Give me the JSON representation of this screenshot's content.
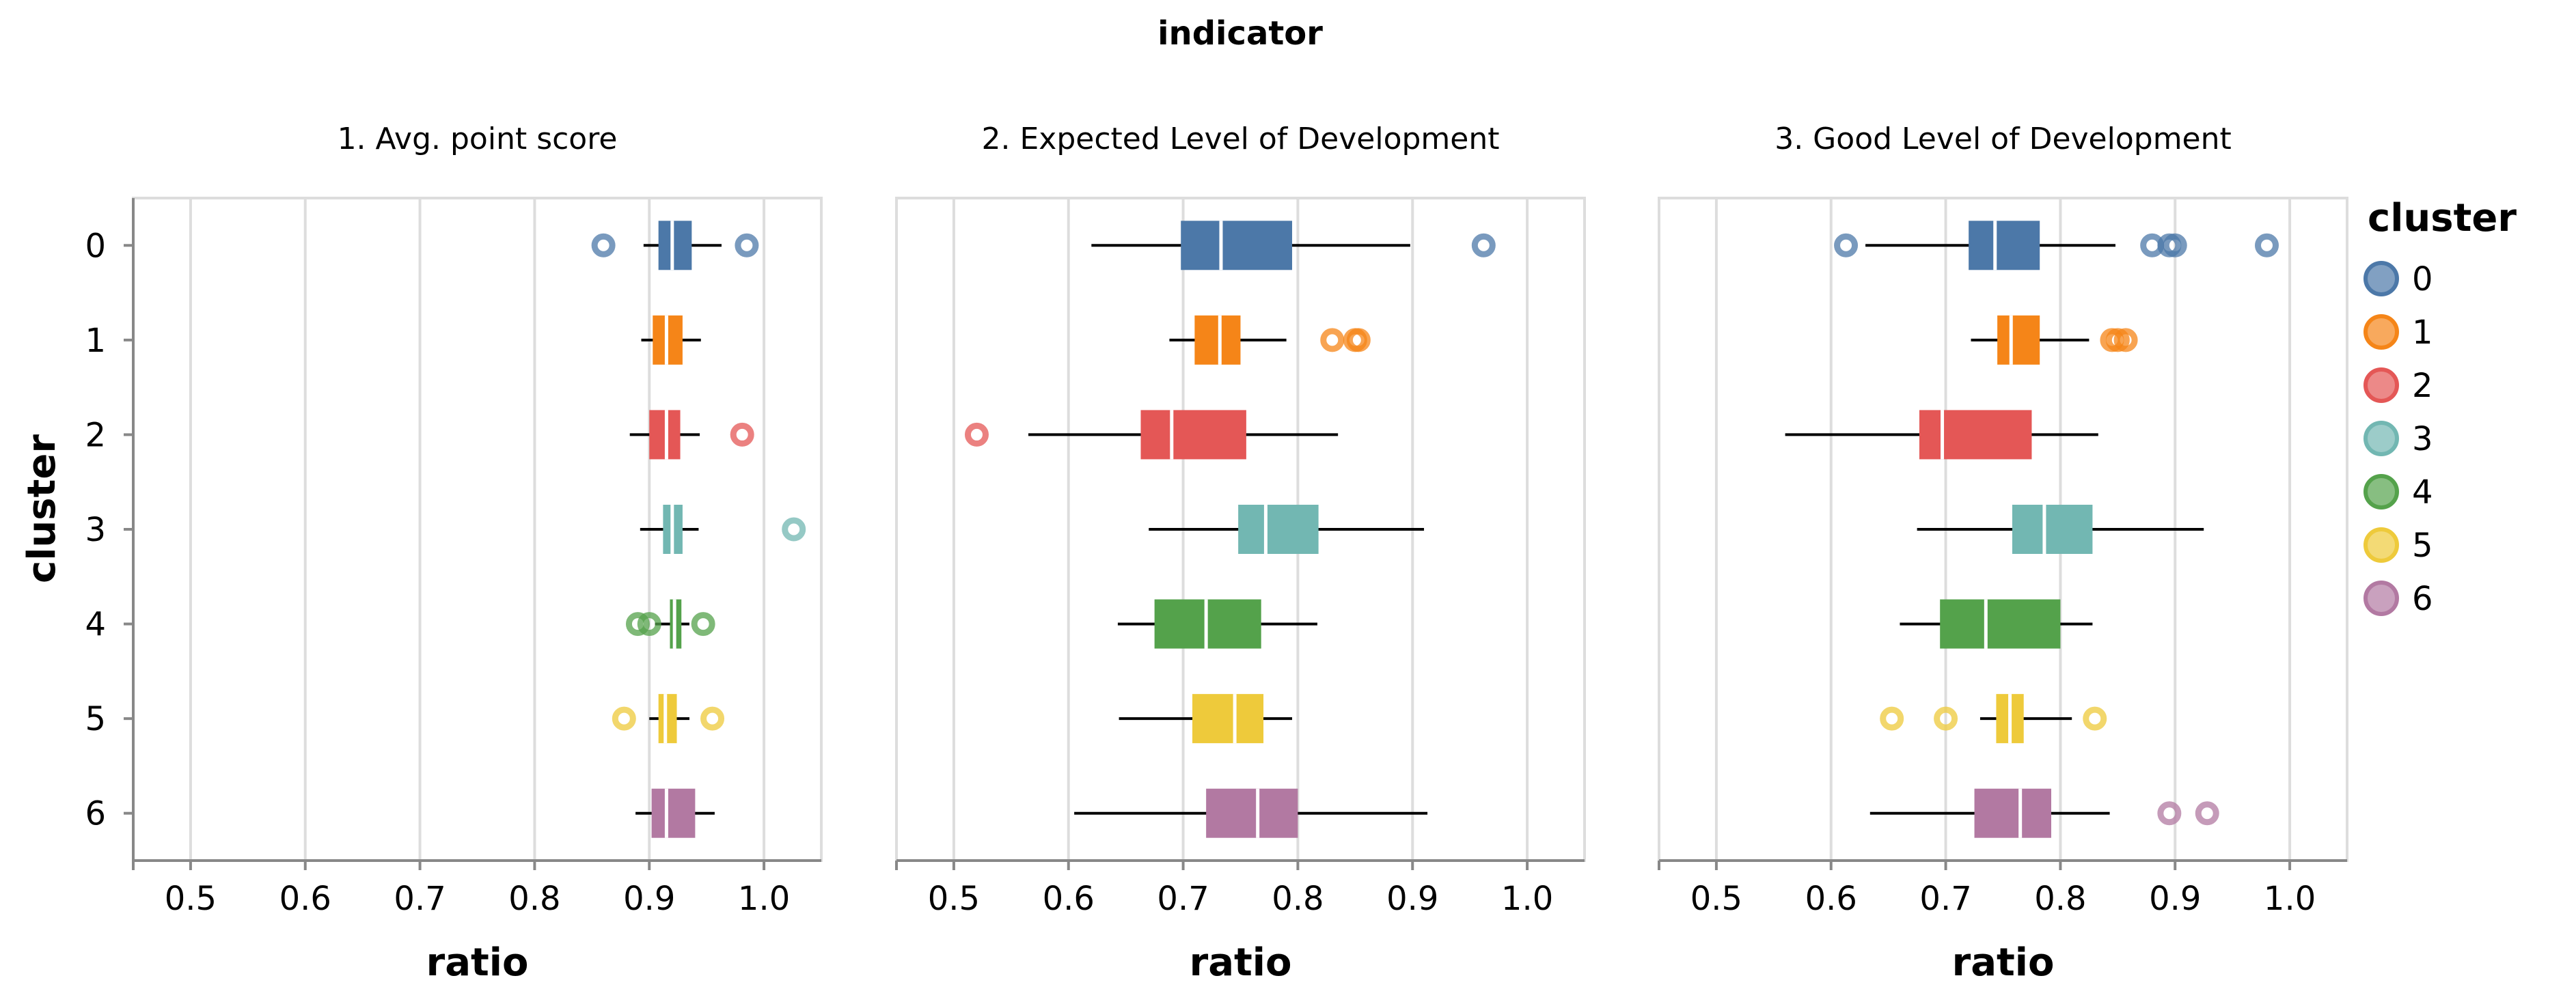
{
  "chart_data": {
    "type": "boxplot",
    "title": "indicator",
    "xlabel": "ratio",
    "ylabel": "cluster",
    "xlim": [
      0.45,
      1.05
    ],
    "x_ticks": [
      "0.5",
      "0.6",
      "0.7",
      "0.8",
      "0.9",
      "1.0"
    ],
    "x_tick_values": [
      0.5,
      0.6,
      0.7,
      0.8,
      0.9,
      1.0
    ],
    "categories": [
      "0",
      "1",
      "2",
      "3",
      "4",
      "5",
      "6"
    ],
    "grid": true,
    "legend": {
      "title": "cluster",
      "placement": "right",
      "items": [
        {
          "label": "0",
          "color": "#4c78a8"
        },
        {
          "label": "1",
          "color": "#f58518"
        },
        {
          "label": "2",
          "color": "#e45756"
        },
        {
          "label": "3",
          "color": "#72b7b2"
        },
        {
          "label": "4",
          "color": "#54a24b"
        },
        {
          "label": "5",
          "color": "#eeca3b"
        },
        {
          "label": "6",
          "color": "#b279a2"
        }
      ]
    },
    "facets": [
      {
        "title": "1. Avg. point score",
        "series": [
          {
            "cluster": "0",
            "min": 0.895,
            "q1": 0.908,
            "median": 0.92,
            "q3": 0.937,
            "max": 0.963,
            "outliers": [
              0.86,
              0.985
            ]
          },
          {
            "cluster": "1",
            "min": 0.893,
            "q1": 0.903,
            "median": 0.915,
            "q3": 0.929,
            "max": 0.945,
            "outliers": []
          },
          {
            "cluster": "2",
            "min": 0.883,
            "q1": 0.9,
            "median": 0.915,
            "q3": 0.927,
            "max": 0.944,
            "outliers": [
              0.981
            ]
          },
          {
            "cluster": "3",
            "min": 0.892,
            "q1": 0.912,
            "median": 0.92,
            "q3": 0.929,
            "max": 0.943,
            "outliers": [
              1.026
            ]
          },
          {
            "cluster": "4",
            "min": 0.905,
            "q1": 0.918,
            "median": 0.922,
            "q3": 0.928,
            "max": 0.935,
            "outliers": [
              0.89,
              0.9,
              0.947
            ]
          },
          {
            "cluster": "5",
            "min": 0.9,
            "q1": 0.908,
            "median": 0.914,
            "q3": 0.924,
            "max": 0.935,
            "outliers": [
              0.878,
              0.955
            ]
          },
          {
            "cluster": "6",
            "min": 0.888,
            "q1": 0.902,
            "median": 0.915,
            "q3": 0.94,
            "max": 0.957,
            "outliers": []
          }
        ]
      },
      {
        "title": "2. Expected Level of Development",
        "series": [
          {
            "cluster": "0",
            "min": 0.62,
            "q1": 0.698,
            "median": 0.733,
            "q3": 0.795,
            "max": 0.898,
            "outliers": [
              0.962
            ]
          },
          {
            "cluster": "1",
            "min": 0.688,
            "q1": 0.71,
            "median": 0.732,
            "q3": 0.75,
            "max": 0.79,
            "outliers": [
              0.83,
              0.85,
              0.853
            ]
          },
          {
            "cluster": "2",
            "min": 0.565,
            "q1": 0.663,
            "median": 0.69,
            "q3": 0.755,
            "max": 0.835,
            "outliers": [
              0.52
            ]
          },
          {
            "cluster": "3",
            "min": 0.67,
            "q1": 0.748,
            "median": 0.772,
            "q3": 0.818,
            "max": 0.91,
            "outliers": []
          },
          {
            "cluster": "4",
            "min": 0.643,
            "q1": 0.675,
            "median": 0.72,
            "q3": 0.768,
            "max": 0.817,
            "outliers": []
          },
          {
            "cluster": "5",
            "min": 0.644,
            "q1": 0.708,
            "median": 0.745,
            "q3": 0.77,
            "max": 0.795,
            "outliers": []
          },
          {
            "cluster": "6",
            "min": 0.605,
            "q1": 0.72,
            "median": 0.765,
            "q3": 0.8,
            "max": 0.913,
            "outliers": []
          }
        ]
      },
      {
        "title": "3. Good Level of Development",
        "series": [
          {
            "cluster": "0",
            "min": 0.63,
            "q1": 0.72,
            "median": 0.743,
            "q3": 0.782,
            "max": 0.848,
            "outliers": [
              0.613,
              0.88,
              0.895,
              0.9,
              0.98
            ]
          },
          {
            "cluster": "1",
            "min": 0.722,
            "q1": 0.745,
            "median": 0.757,
            "q3": 0.782,
            "max": 0.825,
            "outliers": [
              0.845,
              0.85,
              0.857
            ]
          },
          {
            "cluster": "2",
            "min": 0.56,
            "q1": 0.677,
            "median": 0.697,
            "q3": 0.775,
            "max": 0.833,
            "outliers": []
          },
          {
            "cluster": "3",
            "min": 0.675,
            "q1": 0.758,
            "median": 0.786,
            "q3": 0.828,
            "max": 0.925,
            "outliers": []
          },
          {
            "cluster": "4",
            "min": 0.66,
            "q1": 0.695,
            "median": 0.735,
            "q3": 0.8,
            "max": 0.828,
            "outliers": []
          },
          {
            "cluster": "5",
            "min": 0.73,
            "q1": 0.744,
            "median": 0.756,
            "q3": 0.768,
            "max": 0.81,
            "outliers": [
              0.653,
              0.7,
              0.83
            ]
          },
          {
            "cluster": "6",
            "min": 0.634,
            "q1": 0.725,
            "median": 0.765,
            "q3": 0.792,
            "max": 0.843,
            "outliers": [
              0.895,
              0.928
            ]
          }
        ]
      }
    ]
  }
}
